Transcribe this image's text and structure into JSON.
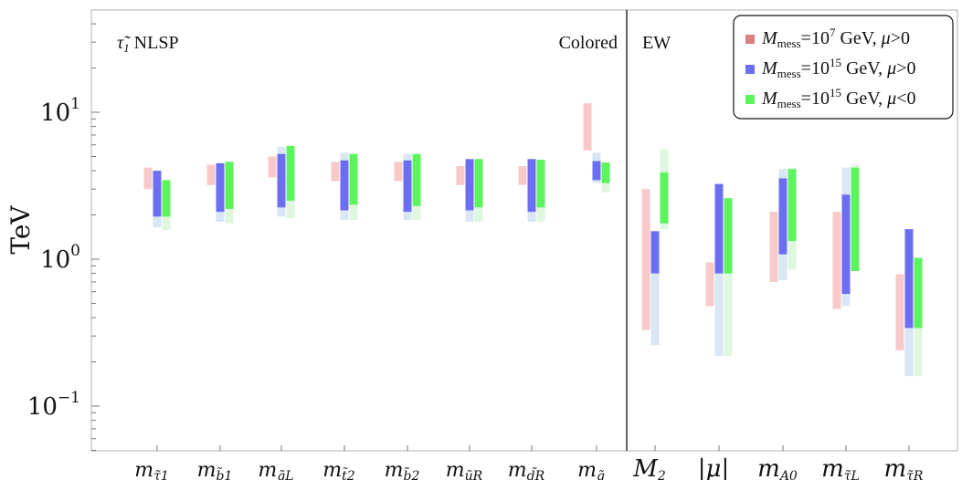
{
  "chart_data": {
    "type": "floating-range-bar",
    "yscale": "log",
    "ylabel": "TeV",
    "ylim": [
      0.05,
      60
    ],
    "yticks": [
      {
        "value": 0.1,
        "base": "10",
        "exp": "−1"
      },
      {
        "value": 1,
        "base": "10",
        "exp": "0"
      },
      {
        "value": 10,
        "base": "10",
        "exp": "1"
      }
    ],
    "regions": {
      "left_title_glyph": "τ̃",
      "left_title_sub": "1",
      "left_title_rest": "NLSP",
      "colored": "Colored",
      "ew": "EW"
    },
    "categories": [
      {
        "main": "m",
        "sub": "τ̃1",
        "group": "colored"
      },
      {
        "main": "m",
        "sub": "b̃1",
        "group": "colored"
      },
      {
        "main": "m",
        "sub": "q̃L",
        "group": "colored"
      },
      {
        "main": "m",
        "sub": "t̃2",
        "group": "colored"
      },
      {
        "main": "m",
        "sub": "b̃2",
        "group": "colored"
      },
      {
        "main": "m",
        "sub": "ũR",
        "group": "colored"
      },
      {
        "main": "m",
        "sub": "d̃R",
        "group": "colored"
      },
      {
        "main": "m",
        "sub": "g̃",
        "group": "colored"
      },
      {
        "main": "M",
        "sub": "2",
        "group": "ew"
      },
      {
        "main": "|μ|",
        "sub": "",
        "group": "ew"
      },
      {
        "main": "m",
        "sub": "A0",
        "group": "ew"
      },
      {
        "main": "m",
        "sub": "τ̃L",
        "group": "ew"
      },
      {
        "main": "m",
        "sub": "τ̃R",
        "group": "ew"
      }
    ],
    "legend": [
      {
        "prefix": "M",
        "sub": "mess",
        "mid": "=10",
        "sup": "7",
        "rest": " GeV, ",
        "mu": "μ",
        "cond": ">0"
      },
      {
        "prefix": "M",
        "sub": "mess",
        "mid": "=10",
        "sup": "15",
        "rest": " GeV, ",
        "mu": "μ",
        "cond": ">0"
      },
      {
        "prefix": "M",
        "sub": "mess",
        "mid": "=10",
        "sup": "15",
        "rest": " GeV, ",
        "mu": "μ",
        "cond": "<0"
      }
    ],
    "colors": {
      "red_light": "#f9c8c8",
      "red_legend": "#d98080",
      "blue_dark": "#6b6ef0",
      "blue_light": "#d8e6f6",
      "green_dark": "#5cf45c",
      "green_light": "#dff6df"
    },
    "series": [
      {
        "name": "Mmess=10^7 GeV, mu>0",
        "light": [
          [
            3.0,
            4.2
          ],
          [
            3.2,
            4.4
          ],
          [
            3.6,
            5.0
          ],
          [
            3.4,
            4.6
          ],
          [
            3.4,
            4.6
          ],
          [
            3.2,
            4.3
          ],
          [
            3.2,
            4.3
          ],
          [
            5.5,
            11.5
          ],
          [
            0.33,
            3.0
          ],
          [
            0.48,
            0.95
          ],
          [
            0.7,
            2.1
          ],
          [
            0.46,
            2.1
          ],
          [
            0.24,
            0.79
          ]
        ]
      },
      {
        "name": "Mmess=10^15 GeV, mu>0",
        "dark": [
          [
            1.95,
            4.0
          ],
          [
            2.1,
            4.5
          ],
          [
            2.25,
            5.2
          ],
          [
            2.15,
            4.7
          ],
          [
            2.1,
            4.7
          ],
          [
            2.15,
            4.8
          ],
          [
            2.1,
            4.8
          ],
          [
            3.45,
            4.65
          ],
          [
            0.8,
            1.55
          ],
          [
            0.8,
            3.25
          ],
          [
            1.08,
            3.55
          ],
          [
            0.58,
            2.75
          ],
          [
            0.34,
            1.6
          ]
        ],
        "light": [
          [
            1.65,
            4.0
          ],
          [
            1.8,
            4.5
          ],
          [
            1.95,
            5.8
          ],
          [
            1.85,
            5.3
          ],
          [
            1.85,
            5.2
          ],
          [
            1.8,
            4.8
          ],
          [
            1.8,
            4.8
          ],
          [
            3.3,
            5.3
          ],
          [
            0.26,
            1.55
          ],
          [
            0.22,
            3.25
          ],
          [
            0.72,
            4.1
          ],
          [
            0.48,
            4.2
          ],
          [
            0.16,
            1.6
          ]
        ]
      },
      {
        "name": "Mmess=10^15 GeV, mu<0",
        "dark": [
          [
            1.95,
            3.45
          ],
          [
            2.2,
            4.6
          ],
          [
            2.5,
            5.9
          ],
          [
            2.35,
            5.2
          ],
          [
            2.3,
            5.2
          ],
          [
            2.25,
            4.8
          ],
          [
            2.25,
            4.75
          ],
          [
            3.3,
            4.55
          ],
          [
            1.75,
            3.9
          ],
          [
            0.8,
            2.6
          ],
          [
            1.33,
            4.1
          ],
          [
            0.83,
            4.2
          ],
          [
            0.34,
            1.02
          ]
        ],
        "light": [
          [
            1.58,
            3.45
          ],
          [
            1.75,
            4.6
          ],
          [
            1.9,
            5.9
          ],
          [
            1.85,
            5.2
          ],
          [
            1.85,
            5.2
          ],
          [
            1.8,
            4.8
          ],
          [
            1.8,
            4.75
          ],
          [
            2.85,
            4.55
          ],
          [
            1.6,
            5.6
          ],
          [
            0.22,
            2.6
          ],
          [
            0.85,
            4.2
          ],
          [
            0.83,
            4.4
          ],
          [
            0.16,
            1.02
          ]
        ]
      }
    ]
  }
}
